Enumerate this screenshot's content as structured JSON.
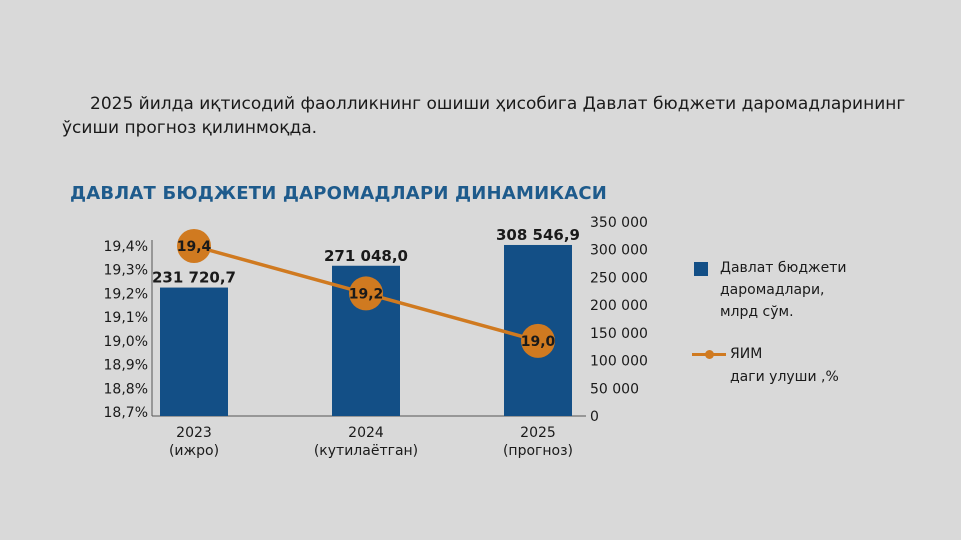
{
  "intro_text": "2025 йилда иқтисодий фаолликнинг ошиши ҳисобига Давлат бюджети даромадларининг ўсиши прогноз қилинмоқда.",
  "colors": {
    "bar": "#134f86",
    "line": "#d07a20",
    "marker": "#d07a20",
    "title": "#1e5b8c",
    "background": "#d9d9d9"
  },
  "chart_data": {
    "type": "bar+line",
    "title": "ДАВЛАТ БЮДЖЕТИ ДАРОМАДЛАРИ ДИНАМИКАСИ",
    "categories": [
      {
        "year": "2023",
        "note": "(ижро)"
      },
      {
        "year": "2024",
        "note": "(кутилаётган)"
      },
      {
        "year": "2025",
        "note": "(прогноз)"
      }
    ],
    "series": [
      {
        "name": "Давлат бюджети даромадлари, млрд сўм.",
        "type": "bar",
        "axis": "right",
        "values": [
          231720.7,
          271048.0,
          308546.9
        ],
        "labels": [
          "231 720,7",
          "271 048,0",
          "308 546,9"
        ]
      },
      {
        "name": "ЯИМ даги улуши ,%",
        "type": "line",
        "axis": "left",
        "values": [
          19.4,
          19.2,
          19.0
        ],
        "labels": [
          "19,4",
          "19,2",
          "19,0"
        ]
      }
    ],
    "left_axis": {
      "ylim": [
        18.7,
        19.4
      ],
      "ticks": [
        18.7,
        18.8,
        18.9,
        19.0,
        19.1,
        19.2,
        19.3,
        19.4
      ],
      "tick_labels": [
        "18,7%",
        "18,8%",
        "18,9%",
        "19,0%",
        "19,1%",
        "19,2%",
        "19,3%",
        "19,4%"
      ]
    },
    "right_axis": {
      "ylim": [
        0,
        350000
      ],
      "ticks": [
        0,
        50000,
        100000,
        150000,
        200000,
        250000,
        300000,
        350000
      ],
      "tick_labels": [
        "0",
        "50 000",
        "100 000",
        "150 000",
        "200 000",
        "250 000",
        "300 000",
        "350 000"
      ]
    },
    "legend": {
      "position": "right",
      "bar_label_lines": [
        "Давлат бюджети",
        "даромадлари,",
        "млрд сўм."
      ],
      "line_label_lines": [
        "ЯИМ",
        "даги улуши ,%"
      ]
    },
    "grid": false
  }
}
